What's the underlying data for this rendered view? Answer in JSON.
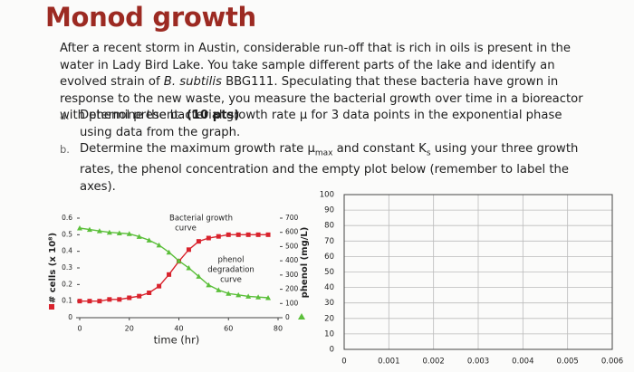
{
  "header": {
    "title": "Monod growth"
  },
  "intro": [
    "After a recent storm in Austin, considerable run-off that is rich in oils is present in the water in Lady Bird Lake. You take sample different parts of the lake and identify an evolved strain of ",
    "B. subtilis",
    " BBG111. Speculating that these bacteria have grown in response to the new waste, you measure the bacterial growth over time in a bioreactor with phenol present. ",
    "(10 pts)"
  ],
  "items": [
    {
      "marker": "a.",
      "text": [
        "Determine the bacterial growth rate μ for 3 data points in the exponential phase using data from the graph."
      ]
    },
    {
      "marker": "b.",
      "text": [
        "Determine the maximum growth rate μ",
        "max",
        " and constant K",
        "s",
        " using your three growth rates, the phenol concentration and the empty plot below (remember to label the axes)."
      ]
    }
  ],
  "chart_data": [
    {
      "type": "line",
      "x_label": "time (hr)",
      "y_label": "# cells (x 10⁸)",
      "y2_label": "phenol (mg/L)",
      "annotations": [
        [
          "Bacterial growth",
          "curve"
        ],
        [
          "phenol",
          "degradation",
          "curve"
        ]
      ],
      "x": [
        0,
        4,
        8,
        12,
        16,
        20,
        24,
        28,
        32,
        36,
        40,
        44,
        48,
        52,
        56,
        60,
        64,
        68,
        72,
        76
      ],
      "series": [
        {
          "name": "# cells (x 10⁸)",
          "color": "#d9232d",
          "axis": "y",
          "values": [
            0.1,
            0.1,
            0.1,
            0.11,
            0.11,
            0.12,
            0.13,
            0.15,
            0.19,
            0.26,
            0.34,
            0.41,
            0.46,
            0.48,
            0.49,
            0.5,
            0.5,
            0.5,
            0.5,
            0.5
          ]
        },
        {
          "name": "phenol (mg/L)",
          "color": "#5bbf3a",
          "axis": "y2",
          "values": [
            630,
            620,
            610,
            600,
            595,
            590,
            570,
            545,
            510,
            460,
            400,
            350,
            290,
            230,
            195,
            170,
            160,
            150,
            145,
            140
          ]
        }
      ],
      "xlim": [
        0,
        80
      ],
      "xticks": [
        0,
        20,
        40,
        60,
        80
      ],
      "ylim": [
        0,
        0.6
      ],
      "yticks": [
        0,
        0.1,
        0.2,
        0.3,
        0.4,
        0.5,
        0.6
      ],
      "y2lim": [
        0,
        700
      ],
      "y2ticks": [
        0,
        100,
        200,
        300,
        400,
        500,
        600,
        700
      ]
    },
    {
      "type": "scatter",
      "xlim": [
        0,
        0.006
      ],
      "xticks": [
        0,
        0.001,
        0.002,
        0.003,
        0.004,
        0.005,
        0.006
      ],
      "ylim": [
        0,
        100
      ],
      "yticks": [
        0,
        10,
        20,
        30,
        40,
        50,
        60,
        70,
        80,
        90,
        100
      ],
      "grid": true
    }
  ]
}
